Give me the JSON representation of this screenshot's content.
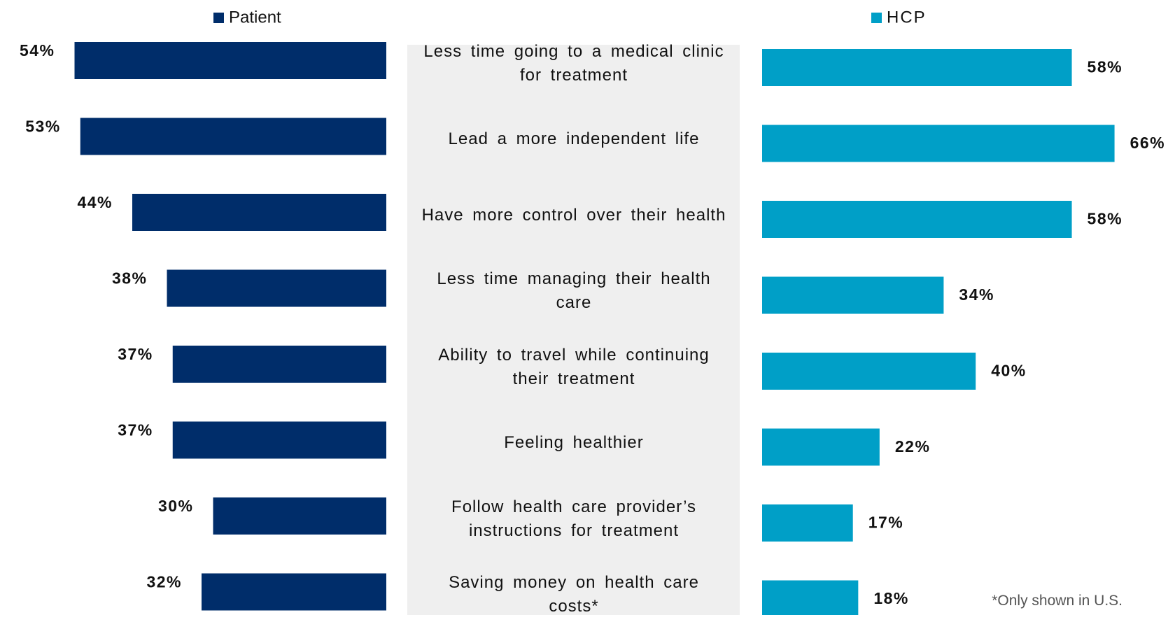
{
  "chart_data": {
    "type": "butterfly-bar",
    "categories": [
      "Less time going to a medical clinic for treatment",
      "Lead a more independent life",
      "Have more control over their health",
      "Less time managing their health care",
      "Ability to travel while continuing their treatment",
      "Feeling healthier",
      "Follow health care provider’s instructions for treatment",
      "Saving money on health care costs*"
    ],
    "series": [
      {
        "name": "Patient",
        "color": "#002d6a",
        "values": [
          54,
          53,
          44,
          38,
          37,
          37,
          30,
          32
        ],
        "value_labels": [
          "54%",
          "53%",
          "44%",
          "38%",
          "37%",
          "37%",
          "30%",
          "32%"
        ]
      },
      {
        "name": "HCP",
        "color": "#009fc7",
        "values": [
          58,
          66,
          58,
          34,
          40,
          22,
          17,
          18
        ],
        "value_labels": [
          "58%",
          "66%",
          "58%",
          "34%",
          "40%",
          "22%",
          "17%",
          "18%"
        ]
      }
    ],
    "footnote": "*Only shown in U.S."
  }
}
